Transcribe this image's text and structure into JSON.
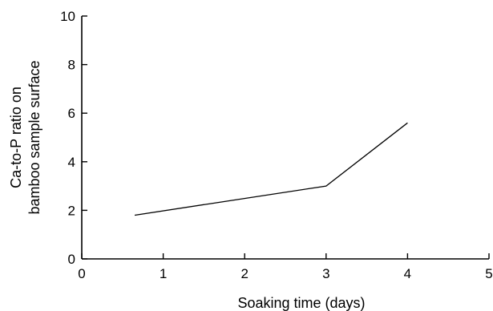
{
  "chart_data": {
    "type": "line",
    "title": "",
    "xlabel": "Soaking time (days)",
    "ylabel_lines": [
      "Ca-to-P ratio on",
      "bamboo sample surface"
    ],
    "xlim": [
      0,
      5
    ],
    "ylim": [
      0,
      10
    ],
    "xticks": [
      "0",
      "1",
      "2",
      "3",
      "4",
      "5"
    ],
    "yticks": [
      "0",
      "2",
      "4",
      "6",
      "8",
      "10"
    ],
    "grid": false,
    "legend": "none",
    "series": [
      {
        "x": [
          0.65,
          3.0,
          4.0
        ],
        "y": [
          1.8,
          3.0,
          5.6
        ]
      }
    ],
    "colors": {
      "line": "#000000",
      "axis": "#000000"
    }
  }
}
